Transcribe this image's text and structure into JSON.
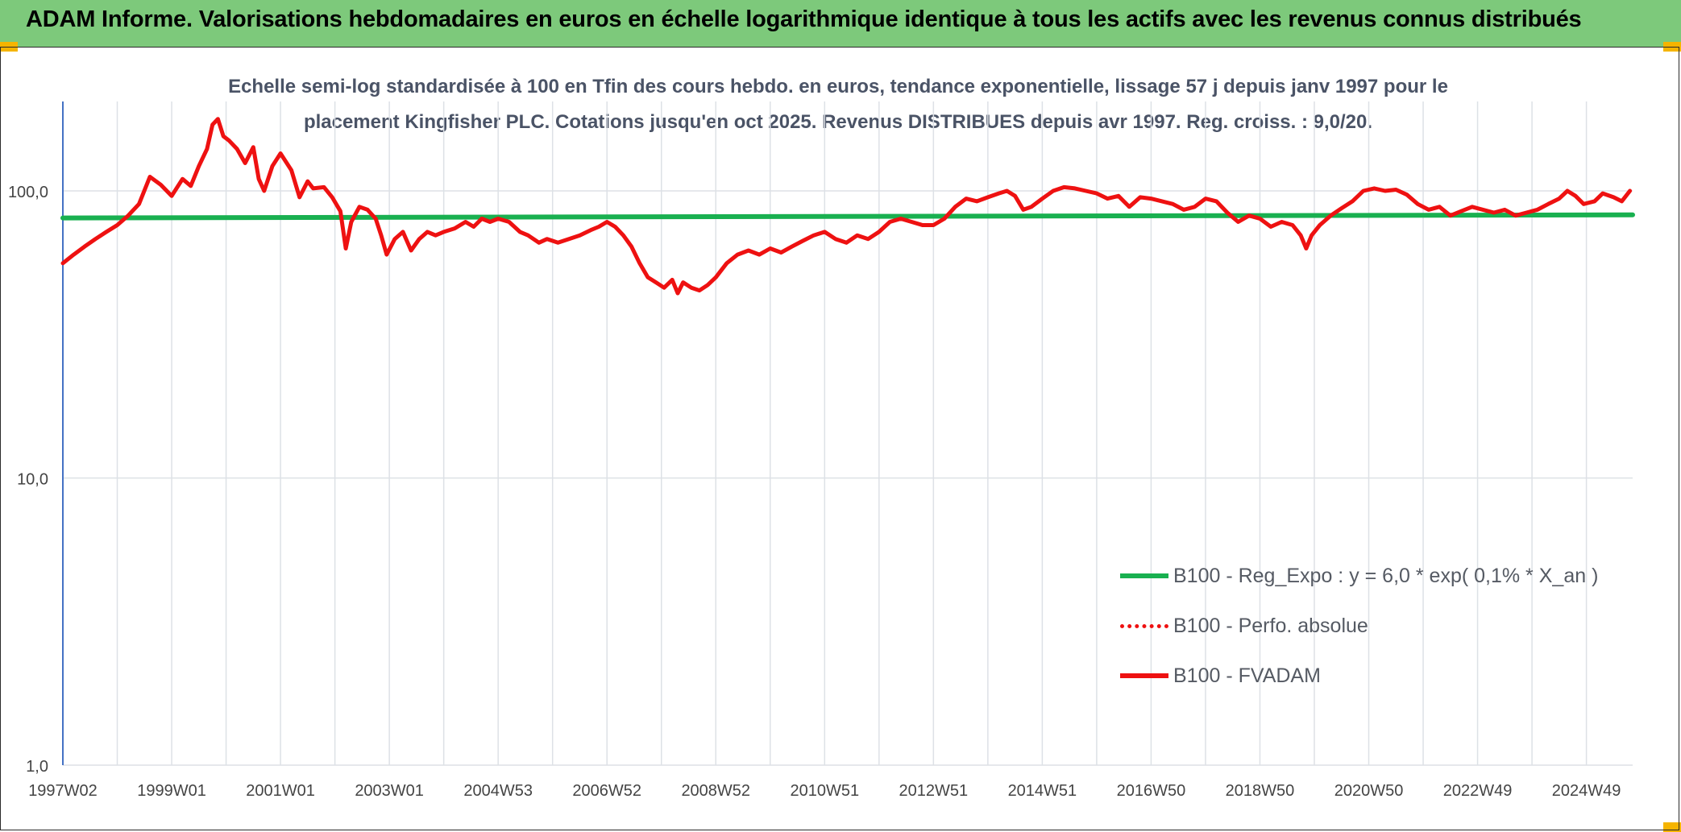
{
  "banner": {
    "title": "ADAM Informe. Valorisations hebdomadaires en euros en échelle logarithmique identique à tous les actifs avec les revenus connus distribués"
  },
  "colors": {
    "banner_bg": "#7dc97b",
    "accent_corner": "#f5b400",
    "series_red": "#ee1111",
    "series_green": "#19b050",
    "grid": "#dde1e6",
    "axis_text": "#444444"
  },
  "chart_data": {
    "type": "line",
    "title_line1": "Echelle semi-log standardisée à 100 en Tfin des cours hebdo. en euros, tendance exponentielle, lissage 57 j depuis janv 1997 pour le",
    "title_line2": "placement Kingfisher PLC. Cotations jusqu'en oct 2025. Revenus DISTRIBUES depuis avr 1997. Reg. croiss. : 9,0/20.",
    "y_scale": "log",
    "ylim": [
      1,
      200
    ],
    "y_ticks": [
      {
        "value": 100,
        "label": "100,0"
      },
      {
        "value": 10,
        "label": "10,0"
      },
      {
        "value": 1,
        "label": "1,0"
      }
    ],
    "x_range": [
      1997.0,
      2025.85
    ],
    "x_ticks": [
      {
        "t": 1997.0,
        "label": "1997W02"
      },
      {
        "t": 1999.0,
        "label": "1999W01"
      },
      {
        "t": 2001.0,
        "label": "2001W01"
      },
      {
        "t": 2003.0,
        "label": "2003W01"
      },
      {
        "t": 2005.0,
        "label": "2004W53"
      },
      {
        "t": 2007.0,
        "label": "2006W52"
      },
      {
        "t": 2009.0,
        "label": "2008W52"
      },
      {
        "t": 2011.0,
        "label": "2010W51"
      },
      {
        "t": 2013.0,
        "label": "2012W51"
      },
      {
        "t": 2015.0,
        "label": "2014W51"
      },
      {
        "t": 2017.0,
        "label": "2016W50"
      },
      {
        "t": 2019.0,
        "label": "2018W50"
      },
      {
        "t": 2021.0,
        "label": "2020W50"
      },
      {
        "t": 2023.0,
        "label": "2022W49"
      },
      {
        "t": 2025.0,
        "label": "2024W49"
      }
    ],
    "minor_x_grid": [
      1998.0,
      2000.0,
      2002.0,
      2004.0,
      2006.0,
      2008.0,
      2010.0,
      2012.0,
      2014.0,
      2016.0,
      2018.0,
      2020.0,
      2022.0,
      2024.0
    ],
    "legend_position": "bottom-right",
    "series": [
      {
        "name": "B100 - Reg_Expo : y = 6,0 * exp( 0,1% *  X_an )",
        "style": "solid-thick",
        "color": "#19b050",
        "points": [
          [
            1997.0,
            80.5
          ],
          [
            2025.85,
            82.5
          ]
        ]
      },
      {
        "name": "B100 - Perfo. absolue",
        "style": "dotted",
        "color": "#ee1111",
        "points": []
      },
      {
        "name": "B100 - FVADAM",
        "style": "solid",
        "color": "#ee1111",
        "points": [
          [
            1997.0,
            56
          ],
          [
            1997.2,
            60
          ],
          [
            1997.4,
            64
          ],
          [
            1997.6,
            68
          ],
          [
            1997.8,
            72
          ],
          [
            1998.0,
            76
          ],
          [
            1998.2,
            82
          ],
          [
            1998.4,
            90
          ],
          [
            1998.6,
            112
          ],
          [
            1998.8,
            105
          ],
          [
            1999.0,
            96
          ],
          [
            1999.2,
            110
          ],
          [
            1999.35,
            104
          ],
          [
            1999.5,
            122
          ],
          [
            1999.65,
            140
          ],
          [
            1999.75,
            170
          ],
          [
            1999.85,
            178
          ],
          [
            1999.95,
            155
          ],
          [
            2000.05,
            150
          ],
          [
            2000.2,
            140
          ],
          [
            2000.35,
            125
          ],
          [
            2000.5,
            142
          ],
          [
            2000.6,
            110
          ],
          [
            2000.7,
            100
          ],
          [
            2000.85,
            122
          ],
          [
            2001.0,
            135
          ],
          [
            2001.2,
            118
          ],
          [
            2001.35,
            95
          ],
          [
            2001.5,
            108
          ],
          [
            2001.6,
            102
          ],
          [
            2001.8,
            103
          ],
          [
            2001.95,
            95
          ],
          [
            2002.1,
            85
          ],
          [
            2002.2,
            63
          ],
          [
            2002.3,
            78
          ],
          [
            2002.45,
            88
          ],
          [
            2002.6,
            86
          ],
          [
            2002.75,
            80
          ],
          [
            2002.85,
            70
          ],
          [
            2002.95,
            60
          ],
          [
            2003.1,
            68
          ],
          [
            2003.25,
            72
          ],
          [
            2003.4,
            62
          ],
          [
            2003.55,
            68
          ],
          [
            2003.7,
            72
          ],
          [
            2003.85,
            70
          ],
          [
            2004.0,
            72
          ],
          [
            2004.2,
            74
          ],
          [
            2004.4,
            78
          ],
          [
            2004.55,
            75
          ],
          [
            2004.7,
            80
          ],
          [
            2004.85,
            78
          ],
          [
            2005.0,
            80
          ],
          [
            2005.2,
            78
          ],
          [
            2005.4,
            72
          ],
          [
            2005.55,
            70
          ],
          [
            2005.75,
            66
          ],
          [
            2005.9,
            68
          ],
          [
            2006.1,
            66
          ],
          [
            2006.3,
            68
          ],
          [
            2006.5,
            70
          ],
          [
            2006.7,
            73
          ],
          [
            2006.85,
            75
          ],
          [
            2007.0,
            78
          ],
          [
            2007.15,
            75
          ],
          [
            2007.3,
            70
          ],
          [
            2007.45,
            64
          ],
          [
            2007.6,
            56
          ],
          [
            2007.75,
            50
          ],
          [
            2007.9,
            48
          ],
          [
            2008.05,
            46
          ],
          [
            2008.2,
            49
          ],
          [
            2008.3,
            44
          ],
          [
            2008.4,
            48
          ],
          [
            2008.55,
            46
          ],
          [
            2008.7,
            45
          ],
          [
            2008.85,
            47
          ],
          [
            2009.0,
            50
          ],
          [
            2009.2,
            56
          ],
          [
            2009.4,
            60
          ],
          [
            2009.6,
            62
          ],
          [
            2009.8,
            60
          ],
          [
            2010.0,
            63
          ],
          [
            2010.2,
            61
          ],
          [
            2010.4,
            64
          ],
          [
            2010.6,
            67
          ],
          [
            2010.8,
            70
          ],
          [
            2011.0,
            72
          ],
          [
            2011.2,
            68
          ],
          [
            2011.4,
            66
          ],
          [
            2011.6,
            70
          ],
          [
            2011.8,
            68
          ],
          [
            2012.0,
            72
          ],
          [
            2012.2,
            78
          ],
          [
            2012.4,
            80
          ],
          [
            2012.6,
            78
          ],
          [
            2012.8,
            76
          ],
          [
            2013.0,
            76
          ],
          [
            2013.2,
            80
          ],
          [
            2013.4,
            88
          ],
          [
            2013.6,
            94
          ],
          [
            2013.8,
            92
          ],
          [
            2014.0,
            95
          ],
          [
            2014.2,
            98
          ],
          [
            2014.35,
            100
          ],
          [
            2014.5,
            96
          ],
          [
            2014.65,
            86
          ],
          [
            2014.8,
            88
          ],
          [
            2015.0,
            94
          ],
          [
            2015.2,
            100
          ],
          [
            2015.4,
            103
          ],
          [
            2015.6,
            102
          ],
          [
            2015.8,
            100
          ],
          [
            2016.0,
            98
          ],
          [
            2016.2,
            94
          ],
          [
            2016.4,
            96
          ],
          [
            2016.6,
            88
          ],
          [
            2016.8,
            95
          ],
          [
            2017.0,
            94
          ],
          [
            2017.2,
            92
          ],
          [
            2017.4,
            90
          ],
          [
            2017.6,
            86
          ],
          [
            2017.8,
            88
          ],
          [
            2018.0,
            94
          ],
          [
            2018.2,
            92
          ],
          [
            2018.4,
            84
          ],
          [
            2018.6,
            78
          ],
          [
            2018.8,
            82
          ],
          [
            2019.0,
            80
          ],
          [
            2019.2,
            75
          ],
          [
            2019.4,
            78
          ],
          [
            2019.6,
            76
          ],
          [
            2019.75,
            70
          ],
          [
            2019.85,
            63
          ],
          [
            2019.95,
            70
          ],
          [
            2020.1,
            76
          ],
          [
            2020.3,
            82
          ],
          [
            2020.5,
            87
          ],
          [
            2020.7,
            92
          ],
          [
            2020.9,
            100
          ],
          [
            2021.1,
            102
          ],
          [
            2021.3,
            100
          ],
          [
            2021.5,
            101
          ],
          [
            2021.7,
            97
          ],
          [
            2021.9,
            90
          ],
          [
            2022.1,
            86
          ],
          [
            2022.3,
            88
          ],
          [
            2022.5,
            82
          ],
          [
            2022.7,
            85
          ],
          [
            2022.9,
            88
          ],
          [
            2023.1,
            86
          ],
          [
            2023.3,
            84
          ],
          [
            2023.5,
            86
          ],
          [
            2023.7,
            82
          ],
          [
            2023.9,
            84
          ],
          [
            2024.1,
            86
          ],
          [
            2024.3,
            90
          ],
          [
            2024.5,
            94
          ],
          [
            2024.65,
            100
          ],
          [
            2024.8,
            96
          ],
          [
            2024.95,
            90
          ],
          [
            2025.15,
            92
          ],
          [
            2025.3,
            98
          ],
          [
            2025.5,
            95
          ],
          [
            2025.65,
            92
          ],
          [
            2025.8,
            100
          ]
        ]
      }
    ]
  }
}
